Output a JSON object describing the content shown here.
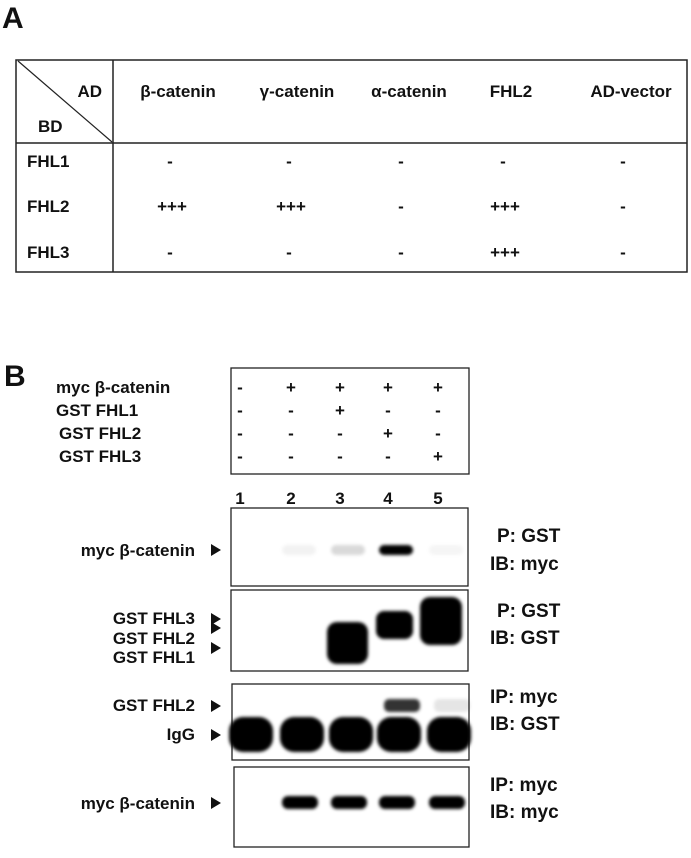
{
  "panel_a": {
    "label": "A",
    "corner_top": "AD",
    "corner_bottom": "BD",
    "columns": [
      "β-catenin",
      "γ-catenin",
      "α-catenin",
      "FHL2",
      "AD-vector"
    ],
    "rows": [
      {
        "name": "FHL1",
        "values": [
          "-",
          "-",
          "-",
          "-",
          "-"
        ]
      },
      {
        "name": "FHL2",
        "values": [
          "+++",
          "+++",
          "-",
          "+++",
          "-"
        ]
      },
      {
        "name": "FHL3",
        "values": [
          "-",
          "-",
          "-",
          "+++",
          "-"
        ]
      }
    ]
  },
  "panel_b": {
    "label": "B",
    "conditions": [
      {
        "name": "myc β-catenin",
        "values": [
          "-",
          "+",
          "+",
          "+",
          "+"
        ]
      },
      {
        "name": "GST FHL1",
        "values": [
          "-",
          "-",
          "+",
          "-",
          "-"
        ]
      },
      {
        "name": "GST FHL2",
        "values": [
          "-",
          "-",
          "-",
          "+",
          "-"
        ]
      },
      {
        "name": "GST FHL3",
        "values": [
          "-",
          "-",
          "-",
          "-",
          "+"
        ]
      }
    ],
    "lanes": [
      "1",
      "2",
      "3",
      "4",
      "5"
    ],
    "blots": [
      {
        "left_labels": [
          "myc β-catenin"
        ],
        "right_labels": [
          "P: GST",
          "IB: myc"
        ],
        "band_intensity": [
          0,
          0.05,
          0.15,
          1,
          0.04
        ]
      },
      {
        "left_labels": [
          "GST FHL3",
          "GST FHL2",
          "GST FHL1"
        ],
        "right_labels": [
          "P: GST",
          "IB: GST"
        ],
        "band_intensity": [
          0,
          0,
          1,
          1,
          1
        ]
      },
      {
        "left_labels": [
          "GST FHL2",
          "IgG"
        ],
        "right_labels": [
          "IP: myc",
          "IB: GST"
        ],
        "band_intensity": [
          1,
          1,
          1,
          1,
          1
        ],
        "upper_band_intensity": [
          0,
          0,
          0,
          0.8,
          0.1
        ]
      },
      {
        "left_labels": [
          "myc β-catenin"
        ],
        "right_labels": [
          "IP: myc",
          "IB: myc"
        ],
        "band_intensity": [
          0,
          1,
          1,
          1,
          1
        ]
      }
    ]
  }
}
